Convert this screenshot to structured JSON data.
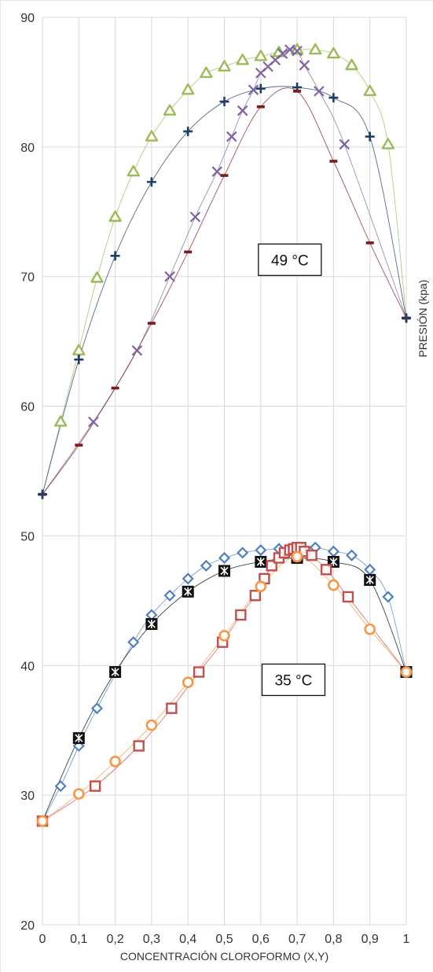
{
  "chart_data": {
    "type": "scatter",
    "title": "",
    "xlabel": "CONCENTRACIÓN CLOROFORMO (X,Y)",
    "ylabel": "PRESIÓN (kpa)",
    "xlim": [
      0,
      1
    ],
    "ylim": [
      20,
      90
    ],
    "x_ticks": [
      "0",
      "0,1",
      "0,2",
      "0,3",
      "0,4",
      "0,5",
      "0,6",
      "0,7",
      "0,8",
      "0,9",
      "1"
    ],
    "y_ticks": [
      "20",
      "30",
      "40",
      "50",
      "60",
      "70",
      "80",
      "90"
    ],
    "grid": true,
    "annotations": [
      {
        "text": "49 °C",
        "x": 0.68,
        "y": 71.3
      },
      {
        "text": "35 °C",
        "x": 0.69,
        "y": 38.9
      }
    ],
    "series": [
      {
        "color": "#9bbb59",
        "marker": "triangle",
        "x": [
          0.05,
          0.1,
          0.15,
          0.2,
          0.25,
          0.3,
          0.35,
          0.4,
          0.45,
          0.5,
          0.55,
          0.6,
          0.65,
          0.7,
          0.75,
          0.8,
          0.85,
          0.9,
          0.95
        ],
        "y": [
          58.8,
          64.3,
          69.9,
          74.6,
          78.1,
          80.8,
          82.8,
          84.4,
          85.7,
          86.2,
          86.7,
          87.0,
          87.3,
          87.5,
          87.5,
          87.2,
          86.3,
          84.3,
          80.2
        ]
      },
      {
        "color": "#1f3d66",
        "marker": "plus",
        "x": [
          0,
          0.1,
          0.2,
          0.3,
          0.4,
          0.5,
          0.6,
          0.7,
          0.8,
          0.9,
          1
        ],
        "y": [
          53.2,
          63.6,
          71.6,
          77.3,
          81.2,
          83.5,
          84.5,
          84.6,
          83.8,
          80.8,
          66.8
        ]
      },
      {
        "color": "#8064a2",
        "marker": "cross",
        "x": [
          0.14,
          0.26,
          0.35,
          0.42,
          0.48,
          0.52,
          0.55,
          0.58,
          0.6,
          0.62,
          0.64,
          0.66,
          0.68,
          0.7,
          0.72,
          0.76,
          0.83
        ],
        "y": [
          58.8,
          64.3,
          70.0,
          74.6,
          78.1,
          80.8,
          82.8,
          84.4,
          85.7,
          86.2,
          86.7,
          87.2,
          87.5,
          87.4,
          86.3,
          84.3,
          80.2
        ]
      },
      {
        "color": "#7b1c1c",
        "marker": "dash",
        "x": [
          0,
          0.1,
          0.2,
          0.3,
          0.4,
          0.5,
          0.6,
          0.7,
          0.8,
          0.9,
          1
        ],
        "y": [
          53.2,
          57.0,
          61.4,
          66.4,
          71.9,
          77.8,
          83.1,
          84.3,
          78.9,
          72.6,
          66.8
        ]
      },
      {
        "color": "#4f81bd",
        "marker": "diamond",
        "x": [
          0.05,
          0.1,
          0.15,
          0.25,
          0.3,
          0.35,
          0.4,
          0.45,
          0.5,
          0.55,
          0.6,
          0.65,
          0.7,
          0.75,
          0.8,
          0.85,
          0.9,
          0.95
        ],
        "y": [
          30.7,
          33.8,
          36.7,
          41.8,
          43.9,
          45.4,
          46.7,
          47.7,
          48.3,
          48.7,
          48.9,
          49.0,
          49.1,
          49.1,
          48.8,
          48.5,
          47.4,
          45.3
        ]
      },
      {
        "color": "#000000",
        "marker": "asterisk-box",
        "x": [
          0.1,
          0.2,
          0.3,
          0.4,
          0.5,
          0.6,
          0.7,
          0.8,
          0.9
        ],
        "y": [
          34.4,
          39.5,
          43.2,
          45.7,
          47.3,
          48.0,
          48.3,
          48.0,
          46.6
        ]
      },
      {
        "color": "#c0504d",
        "marker": "square",
        "x": [
          0.145,
          0.265,
          0.355,
          0.43,
          0.495,
          0.545,
          0.585,
          0.61,
          0.63,
          0.65,
          0.665,
          0.68,
          0.69,
          0.7,
          0.71,
          0.72,
          0.74,
          0.78,
          0.84
        ],
        "y": [
          30.7,
          33.8,
          36.7,
          39.5,
          41.8,
          43.9,
          45.4,
          46.7,
          47.7,
          48.3,
          48.7,
          48.9,
          49.0,
          49.1,
          49.1,
          48.8,
          48.5,
          47.4,
          45.3
        ]
      },
      {
        "color": "#f79646",
        "marker": "circle",
        "x": [
          0,
          0.1,
          0.2,
          0.3,
          0.4,
          0.5,
          0.6,
          0.7,
          0.8,
          0.9,
          1
        ],
        "y": [
          28.0,
          30.1,
          32.6,
          35.4,
          38.7,
          42.3,
          46.1,
          48.4,
          46.2,
          42.8,
          39.5
        ]
      }
    ],
    "shared_endpoints": [
      {
        "x": 0,
        "y": 53.2,
        "color": "#7b1c1c"
      },
      {
        "x": 1,
        "y": 66.8,
        "color": "#1f3d66"
      },
      {
        "x": 0,
        "y": 28.0,
        "color": "#f79646"
      },
      {
        "x": 1,
        "y": 39.5,
        "color": "#f79646"
      }
    ]
  }
}
